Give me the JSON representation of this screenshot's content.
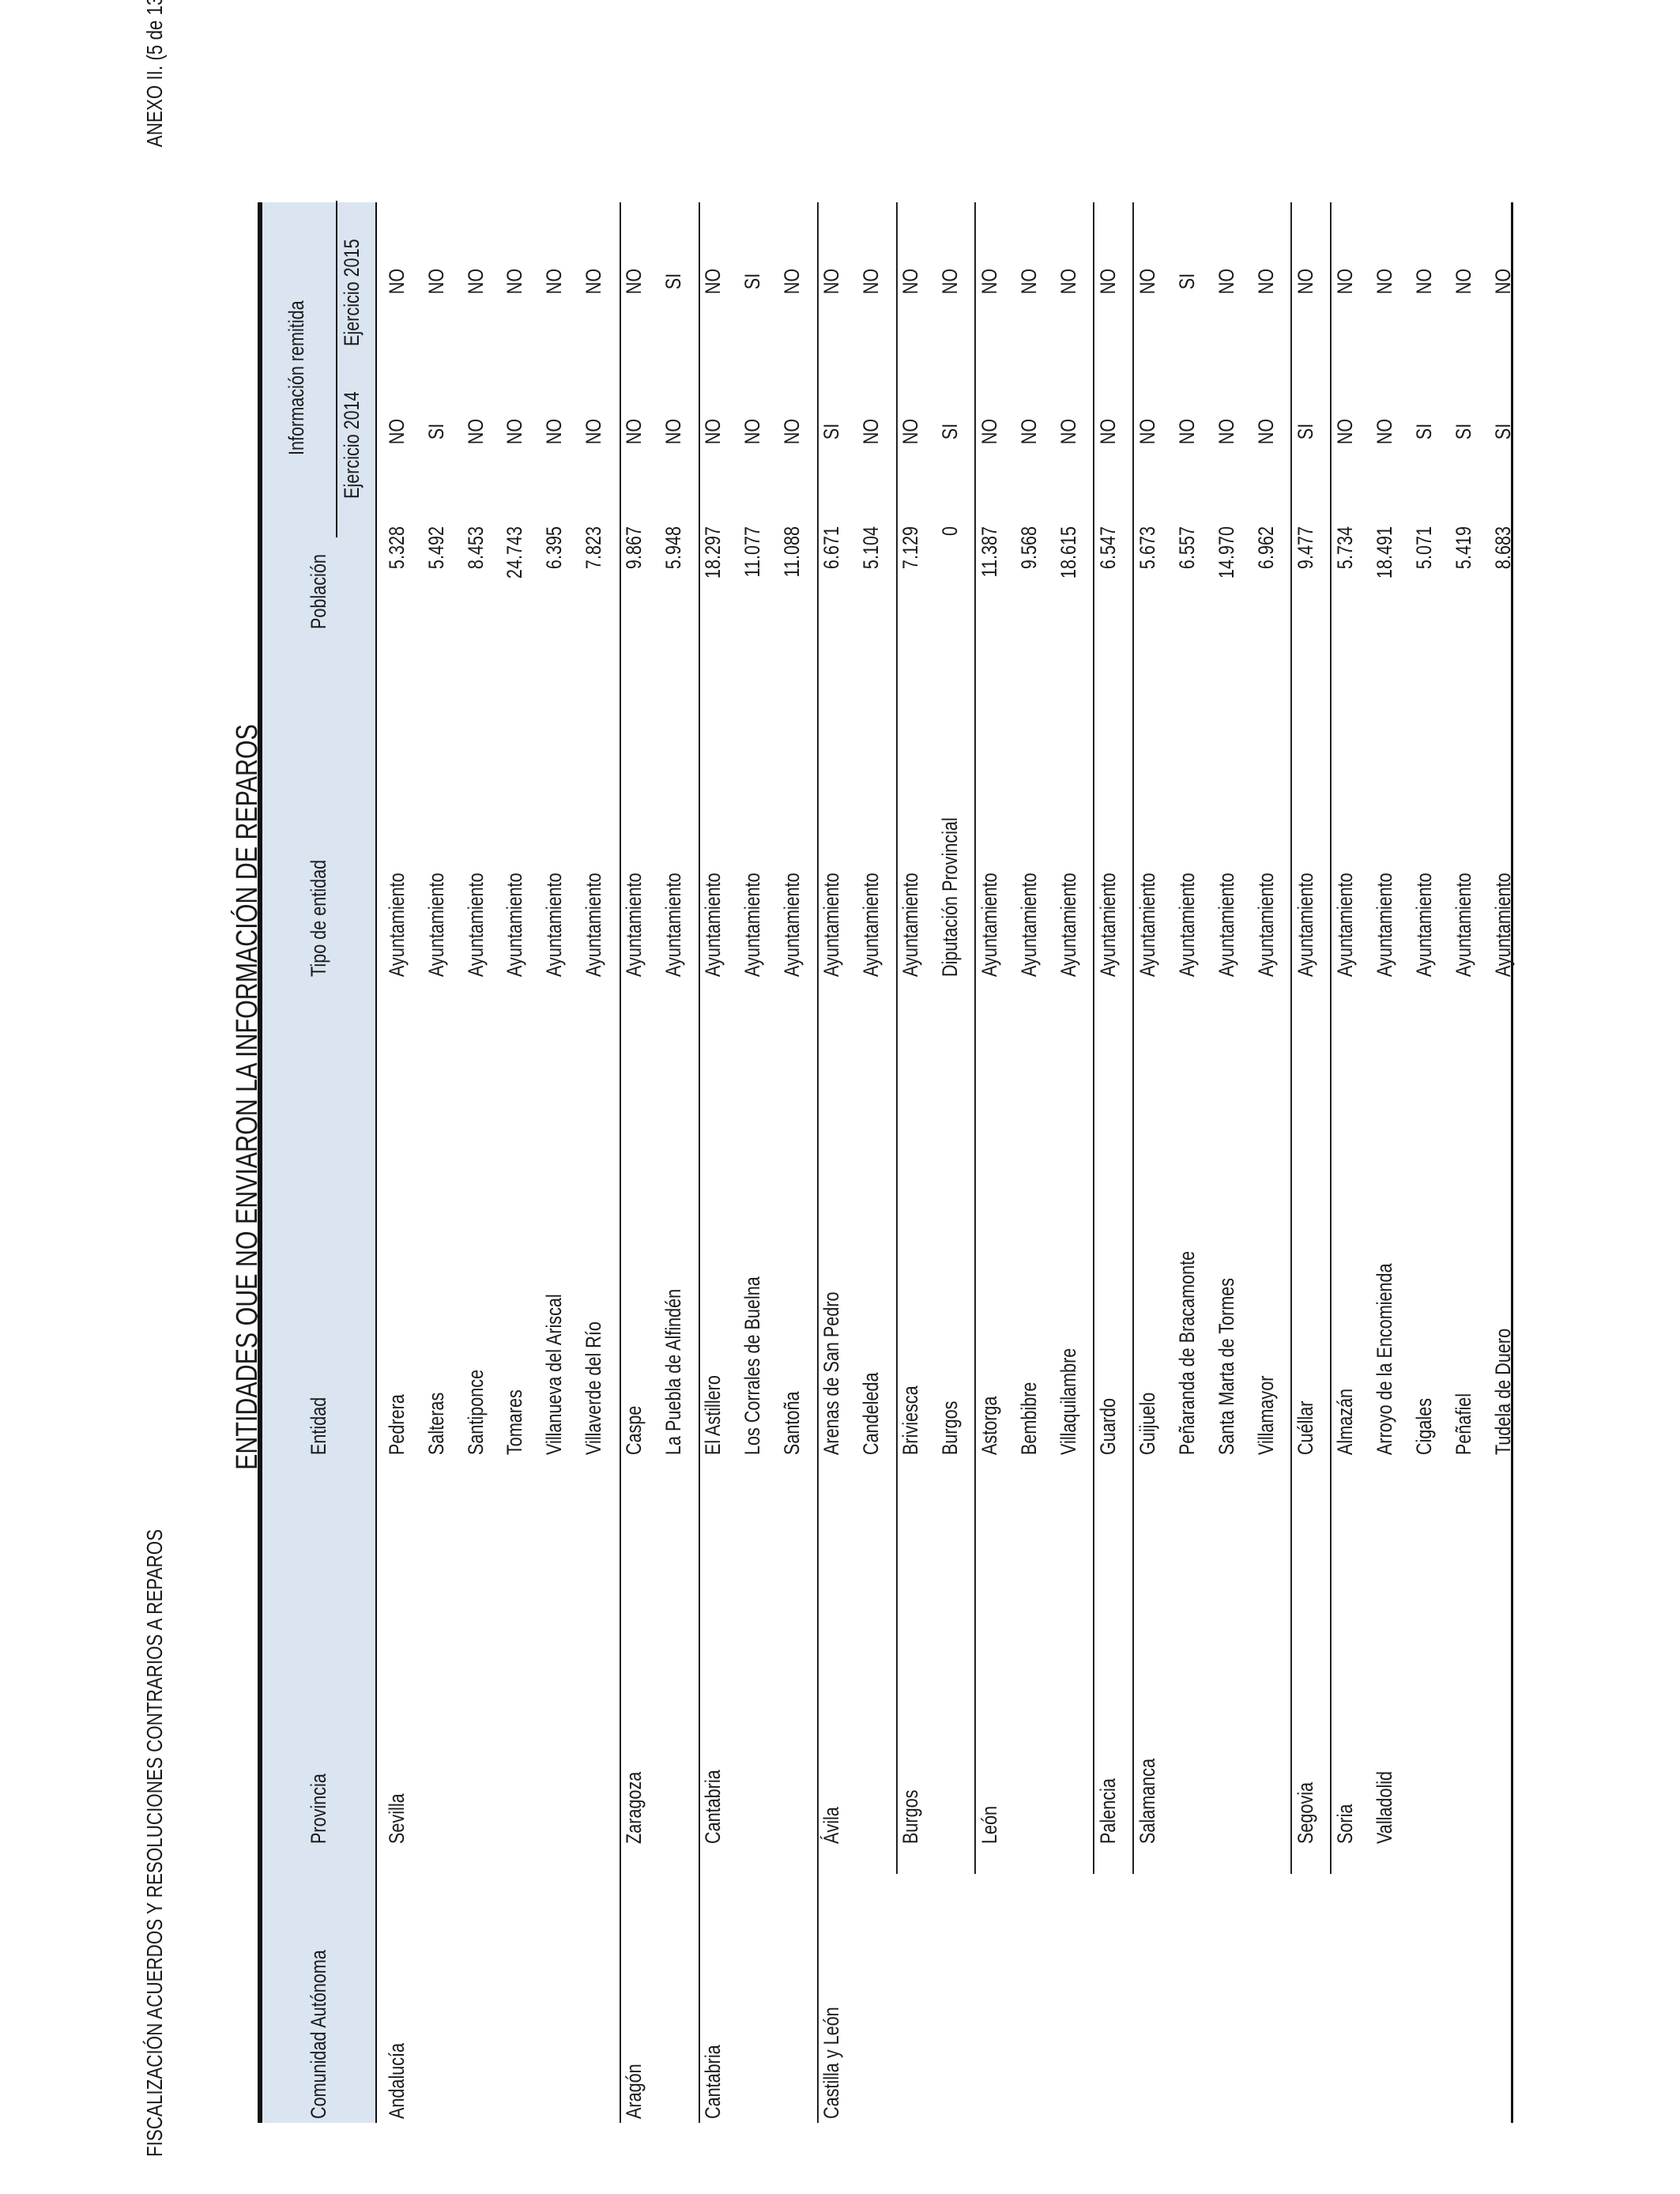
{
  "header": {
    "left": "FISCALIZACIÓN ACUERDOS Y RESOLUCIONES CONTRARIOS A REPAROS",
    "right": "ANEXO II. (5 de 13)"
  },
  "title": "ENTIDADES QUE NO ENVIARON LA INFORMACIÓN DE REPAROS",
  "columns": {
    "comunidad": "Comunidad Autónoma",
    "provincia": "Provincia",
    "entidad": "Entidad",
    "tipo": "Tipo de entidad",
    "poblacion": "Población",
    "info": "Información remitida",
    "ej2014": "Ejercicio 2014",
    "ej2015": "Ejercicio 2015"
  },
  "rows": [
    {
      "comunidad": "Andalucía",
      "provincia": "Sevilla",
      "entidad": "Pedrera",
      "tipo": "Ayuntamiento",
      "poblacion": "5.328",
      "ej2014": "NO",
      "ej2015": "NO"
    },
    {
      "comunidad": "",
      "provincia": "",
      "entidad": "Salteras",
      "tipo": "Ayuntamiento",
      "poblacion": "5.492",
      "ej2014": "SI",
      "ej2015": "NO"
    },
    {
      "comunidad": "",
      "provincia": "",
      "entidad": "Santiponce",
      "tipo": "Ayuntamiento",
      "poblacion": "8.453",
      "ej2014": "NO",
      "ej2015": "NO"
    },
    {
      "comunidad": "",
      "provincia": "",
      "entidad": "Tomares",
      "tipo": "Ayuntamiento",
      "poblacion": "24.743",
      "ej2014": "NO",
      "ej2015": "NO"
    },
    {
      "comunidad": "",
      "provincia": "",
      "entidad": "Villanueva del Ariscal",
      "tipo": "Ayuntamiento",
      "poblacion": "6.395",
      "ej2014": "NO",
      "ej2015": "NO"
    },
    {
      "comunidad": "",
      "provincia": "",
      "entidad": "Villaverde del Río",
      "tipo": "Ayuntamiento",
      "poblacion": "7.823",
      "ej2014": "NO",
      "ej2015": "NO"
    },
    {
      "comunidad": "Aragón",
      "provincia": "Zaragoza",
      "entidad": "Caspe",
      "tipo": "Ayuntamiento",
      "poblacion": "9.867",
      "ej2014": "NO",
      "ej2015": "NO"
    },
    {
      "comunidad": "",
      "provincia": "",
      "entidad": "La Puebla de Alfindén",
      "tipo": "Ayuntamiento",
      "poblacion": "5.948",
      "ej2014": "NO",
      "ej2015": "SI"
    },
    {
      "comunidad": "Cantabria",
      "provincia": "Cantabria",
      "entidad": "El Astillero",
      "tipo": "Ayuntamiento",
      "poblacion": "18.297",
      "ej2014": "NO",
      "ej2015": "NO"
    },
    {
      "comunidad": "",
      "provincia": "",
      "entidad": "Los Corrales de Buelna",
      "tipo": "Ayuntamiento",
      "poblacion": "11.077",
      "ej2014": "NO",
      "ej2015": "SI"
    },
    {
      "comunidad": "",
      "provincia": "",
      "entidad": "Santoña",
      "tipo": "Ayuntamiento",
      "poblacion": "11.088",
      "ej2014": "NO",
      "ej2015": "NO"
    },
    {
      "comunidad": "Castilla y León",
      "provincia": "Ávila",
      "entidad": "Arenas de San Pedro",
      "tipo": "Ayuntamiento",
      "poblacion": "6.671",
      "ej2014": "SI",
      "ej2015": "NO"
    },
    {
      "comunidad": "",
      "provincia": "",
      "entidad": "Candeleda",
      "tipo": "Ayuntamiento",
      "poblacion": "5.104",
      "ej2014": "NO",
      "ej2015": "NO"
    },
    {
      "comunidad": "",
      "provincia": "Burgos",
      "entidad": "Briviesca",
      "tipo": "Ayuntamiento",
      "poblacion": "7.129",
      "ej2014": "NO",
      "ej2015": "NO"
    },
    {
      "comunidad": "",
      "provincia": "",
      "entidad": "Burgos",
      "tipo": "Diputación Provincial",
      "poblacion": "0",
      "ej2014": "SI",
      "ej2015": "NO"
    },
    {
      "comunidad": "",
      "provincia": "León",
      "entidad": "Astorga",
      "tipo": "Ayuntamiento",
      "poblacion": "11.387",
      "ej2014": "NO",
      "ej2015": "NO"
    },
    {
      "comunidad": "",
      "provincia": "",
      "entidad": "Bembibre",
      "tipo": "Ayuntamiento",
      "poblacion": "9.568",
      "ej2014": "NO",
      "ej2015": "NO"
    },
    {
      "comunidad": "",
      "provincia": "",
      "entidad": "Villaquilambre",
      "tipo": "Ayuntamiento",
      "poblacion": "18.615",
      "ej2014": "NO",
      "ej2015": "NO"
    },
    {
      "comunidad": "",
      "provincia": "Palencia",
      "entidad": "Guardo",
      "tipo": "Ayuntamiento",
      "poblacion": "6.547",
      "ej2014": "NO",
      "ej2015": "NO"
    },
    {
      "comunidad": "",
      "provincia": "Salamanca",
      "entidad": "Guijuelo",
      "tipo": "Ayuntamiento",
      "poblacion": "5.673",
      "ej2014": "NO",
      "ej2015": "NO"
    },
    {
      "comunidad": "",
      "provincia": "",
      "entidad": "Peñaranda de Bracamonte",
      "tipo": "Ayuntamiento",
      "poblacion": "6.557",
      "ej2014": "NO",
      "ej2015": "SI"
    },
    {
      "comunidad": "",
      "provincia": "",
      "entidad": "Santa Marta de Tormes",
      "tipo": "Ayuntamiento",
      "poblacion": "14.970",
      "ej2014": "NO",
      "ej2015": "NO"
    },
    {
      "comunidad": "",
      "provincia": "",
      "entidad": "Villamayor",
      "tipo": "Ayuntamiento",
      "poblacion": "6.962",
      "ej2014": "NO",
      "ej2015": "NO"
    },
    {
      "comunidad": "",
      "provincia": "Segovia",
      "entidad": "Cuéllar",
      "tipo": "Ayuntamiento",
      "poblacion": "9.477",
      "ej2014": "SI",
      "ej2015": "NO"
    },
    {
      "comunidad": "",
      "provincia": "Soria",
      "entidad": "Almazán",
      "tipo": "Ayuntamiento",
      "poblacion": "5.734",
      "ej2014": "NO",
      "ej2015": "NO"
    },
    {
      "comunidad": "",
      "provincia": "Valladolid",
      "entidad": "Arroyo de la Encomienda",
      "tipo": "Ayuntamiento",
      "poblacion": "18.491",
      "ej2014": "NO",
      "ej2015": "NO"
    },
    {
      "comunidad": "",
      "provincia": "",
      "entidad": "Cigales",
      "tipo": "Ayuntamiento",
      "poblacion": "5.071",
      "ej2014": "SI",
      "ej2015": "NO"
    },
    {
      "comunidad": "",
      "provincia": "",
      "entidad": "Peñafiel",
      "tipo": "Ayuntamiento",
      "poblacion": "5.419",
      "ej2014": "SI",
      "ej2015": "NO"
    },
    {
      "comunidad": "",
      "provincia": "",
      "entidad": "Tudela de Duero",
      "tipo": "Ayuntamiento",
      "poblacion": "8.683",
      "ej2014": "SI",
      "ej2015": "NO"
    }
  ]
}
